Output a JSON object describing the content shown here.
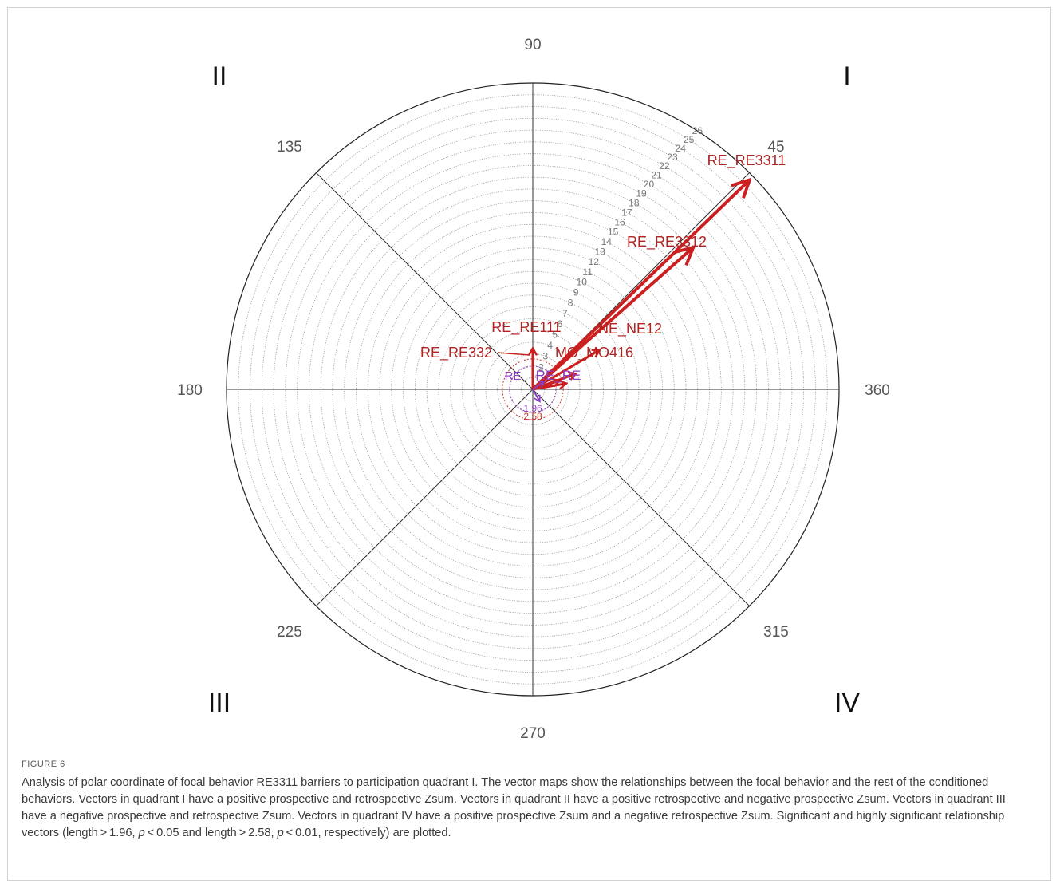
{
  "figure": {
    "label": "FIGURE 6",
    "caption_parts": [
      "Analysis of polar coordinate of focal behavior RE3311 barriers to participation quadrant I. The vector maps show the relationships between the focal behavior and the rest of the conditioned behaviors. Vectors in quadrant I have a positive prospective and retrospective Zsum. Vectors in quadrant II have a positive retrospective and negative prospective Zsum. Vectors in quadrant III have a negative prospective and retrospective Zsum. Vectors in quadrant IV have a positive prospective Zsum and a negative retrospective Zsum. Significant and highly significant relationship vectors (length > 1.96, ",
      "p",
      " < 0.05 and length > 2.58, ",
      "p",
      " < 0.01, respectively) are plotted."
    ]
  },
  "chart_data": {
    "type": "polar-vector",
    "radial_max": 26,
    "radial_ticks": [
      "1",
      "2",
      "3",
      "4",
      "5",
      "6",
      "7",
      "8",
      "9",
      "10",
      "11",
      "12",
      "13",
      "14",
      "15",
      "16",
      "17",
      "18",
      "19",
      "20",
      "21",
      "22",
      "23",
      "24",
      "25",
      "26"
    ],
    "angle_labels": [
      {
        "angle": 90,
        "text": "90"
      },
      {
        "angle": 135,
        "text": "135"
      },
      {
        "angle": 180,
        "text": "180"
      },
      {
        "angle": 225,
        "text": "225"
      },
      {
        "angle": 270,
        "text": "270"
      },
      {
        "angle": 315,
        "text": "315"
      },
      {
        "angle": 360,
        "text": "360"
      },
      {
        "angle": 45,
        "text": "45"
      }
    ],
    "quadrant_labels": [
      {
        "quadrant": "I",
        "text": "I"
      },
      {
        "quadrant": "II",
        "text": "II"
      },
      {
        "quadrant": "III",
        "text": "III"
      },
      {
        "quadrant": "IV",
        "text": "IV"
      }
    ],
    "significance_circles": [
      {
        "value": 1.96,
        "label": "1.96",
        "color": "#8a3fbf"
      },
      {
        "value": 2.58,
        "label": "2.58",
        "color": "#c0392b"
      }
    ],
    "vectors": [
      {
        "name": "RE_RE3311",
        "length": 25.6,
        "angle": 44.0,
        "color": "#cc1f1f"
      },
      {
        "name": "RE_RE3312",
        "length": 18.2,
        "angle": 41.5,
        "color": "#cc1f1f"
      },
      {
        "name": "NE_NE12",
        "length": 6.6,
        "angle": 30.5,
        "color": "#cc1f1f"
      },
      {
        "name": "MO_MO416",
        "length": 3.9,
        "angle": 20.0,
        "color": "#cc1f1f"
      },
      {
        "name": "RE_RE111",
        "length": 3.5,
        "angle": 90.0,
        "color": "#cc1f1f"
      },
      {
        "name": "RE_RE332",
        "length": 2.4,
        "angle": 18.0,
        "color": "#cc1f1f"
      },
      {
        "name": "RE_RE",
        "length": 2.9,
        "angle": 10.0,
        "color": "#cc1f1f"
      },
      {
        "name": "RE",
        "length": 1.2,
        "angle": 35.0,
        "color": "#8a3fbf"
      },
      {
        "name": "RE",
        "length": 1.2,
        "angle": 300.0,
        "color": "#8a3fbf"
      }
    ],
    "vector_labels": [
      {
        "text": "RE_RE3311",
        "color": "#b22222"
      },
      {
        "text": "RE_RE3312",
        "color": "#b22222"
      },
      {
        "text": "NE_NE12",
        "color": "#b22222"
      },
      {
        "text": "MO_MO416",
        "color": "#b22222"
      },
      {
        "text": "RE_RE111",
        "color": "#b22222"
      },
      {
        "text": "RE_RE332",
        "color": "#b22222"
      },
      {
        "text": "RE_RE",
        "color": "#8a3fbf"
      },
      {
        "text": "RE",
        "color": "#8a3fbf"
      }
    ]
  }
}
